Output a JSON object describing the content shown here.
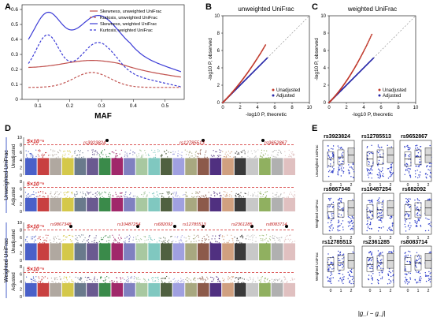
{
  "panels": {
    "A": "A",
    "B": "B",
    "C": "C",
    "D": "D",
    "E": "E"
  },
  "panel_a": {
    "xlabel": "MAF",
    "x_ticks": [
      "0.1",
      "0.2",
      "0.3",
      "0.4",
      "0.5"
    ],
    "y_ticks": [
      "0",
      "0.1",
      "0.2",
      "0.3",
      "0.4",
      "0.5",
      "0.6"
    ],
    "legend": [
      {
        "label": "Skewness, unweighted UniFrac",
        "color": "#c0504d",
        "dash": false
      },
      {
        "label": "Kurtosis, unweighted UniFrac",
        "color": "#c0504d",
        "dash": true
      },
      {
        "label": "Skewness, weighted UniFrac",
        "color": "#3b3bd6",
        "dash": false
      },
      {
        "label": "Kurtosis, weighted UniFrac",
        "color": "#3b3bd6",
        "dash": true
      }
    ]
  },
  "panel_b": {
    "title": "unweighted  UniFrac",
    "ylabel": "-log10 P, observed",
    "xlabel": "-log10 P, theoretic",
    "ticks": [
      "0",
      "2",
      "4",
      "6",
      "8",
      "10"
    ],
    "legend": [
      {
        "label": "Unadjusted",
        "color": "#c0392b"
      },
      {
        "label": "Adjusted",
        "color": "#2828a8"
      }
    ]
  },
  "panel_c": {
    "title": "weighted  UniFrac",
    "ylabel": "-log10 P, observed",
    "xlabel": "-log10 P, theoretic",
    "ticks": [
      "0",
      "2",
      "4",
      "6",
      "8",
      "10"
    ],
    "legend": [
      {
        "label": "Unadjusted",
        "color": "#c0392b"
      },
      {
        "label": "Adjusted",
        "color": "#2828a8"
      }
    ]
  },
  "panel_d": {
    "group_labels": [
      "Unweighted UniFrac",
      "Weighted UniFrac"
    ],
    "row_labels": [
      "Unadjusted",
      "Adjusted",
      "Unadjusted",
      "Adjusted"
    ],
    "y_ticks_top": [
      "0",
      "2",
      "4",
      "6",
      "8",
      "10"
    ],
    "y_ticks": [
      "0",
      "2",
      "4",
      "6",
      "8"
    ],
    "thresholds": [
      "5×10⁻⁸",
      "5×10⁻⁸",
      "5×10⁻⁸",
      "5×10⁻⁸"
    ],
    "snps_row1": [
      "rs3923824",
      "rs12785513",
      "rs9652867"
    ],
    "snps_row3": [
      "rs9867348",
      "rs10487254",
      "rs682092",
      "rs12785513",
      "rs2361285",
      "rs8083714"
    ],
    "chrom_colors": [
      "#4a60c8",
      "#c84040",
      "#b0a8a0",
      "#d4c84a",
      "#6a7a8c",
      "#6a5a90",
      "#3a8a4a",
      "#a0286a",
      "#8080c0",
      "#a8c8a0",
      "#80c8c0",
      "#506040",
      "#a0a0e0",
      "#a8a880",
      "#8c5a4a",
      "#503080",
      "#d0a080",
      "#3a3a3a",
      "#c8c8c8",
      "#90b060",
      "#b0b0b0",
      "#e0c0c0"
    ]
  },
  "panel_e": {
    "snps": [
      "rs3923824",
      "rs12785513",
      "rs9652867",
      "rs9867348",
      "rs10487254",
      "rs682092",
      "rs12785513",
      "rs2361285",
      "rs8083714"
    ],
    "ylabel_rows": [
      "Unweighted UniFrac",
      "Weighted UniFrac",
      "Weighted UniFrac"
    ],
    "x_ticks": [
      "0",
      "1",
      "2"
    ],
    "xlabel": "|g_i − g_j|"
  }
}
